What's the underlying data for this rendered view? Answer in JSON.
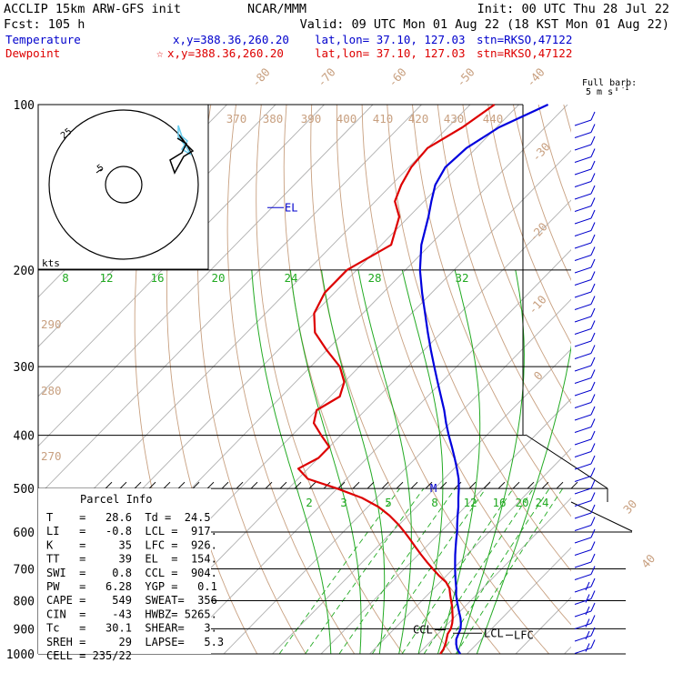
{
  "header": {
    "model": "ACCLIP 15km ARW-GFS init",
    "center": "NCAR/MMM",
    "init": "Init: 00 UTC Thu 28 Jul 22",
    "fcst": "Fcst:  105 h",
    "valid": "Valid: 09 UTC Mon 01 Aug 22 (18 KST Mon 01 Aug 22)",
    "temp_label": "Temperature",
    "temp_xy": "x,y=388.36,260.20",
    "temp_latlon": "lat,lon= 37.10, 127.03",
    "temp_stn": "stn=RKSO,47122",
    "dew_label": "Dewpoint",
    "dew_xy": "x,y=388.36,260.20",
    "dew_latlon": "lat,lon= 37.10, 127.03",
    "dew_stn": "stn=RKSO,47122",
    "full_barb": "Full barb:",
    "barb_unit": "5 m s",
    "barb_unit_sup": "-1"
  },
  "colors": {
    "temperature": "#0000dd",
    "dewpoint": "#dd0000",
    "dry_adiabat": "#c8a080",
    "mixing_ratio": "#22aa22",
    "isobar": "#000000"
  },
  "chart_data": {
    "type": "line",
    "yscale": "log-pressure",
    "ylabel": "",
    "xlabel": "",
    "pressure_levels": [
      "100",
      "200",
      "300",
      "400",
      "500",
      "600",
      "700",
      "800",
      "900",
      "1000"
    ],
    "isotherm_labels": [
      "-80",
      "-70",
      "-60",
      "-50",
      "-40",
      "-30",
      "-20",
      "-10",
      "0",
      "30",
      "40"
    ],
    "theta_top_labels": [
      "370",
      "380",
      "390",
      "400",
      "410",
      "420",
      "430",
      "440"
    ],
    "theta_left_labels": [
      "290",
      "280",
      "270"
    ],
    "mixing_ratio_top": [
      "8",
      "12",
      "16",
      "20",
      "24",
      "28",
      "32"
    ],
    "mixing_ratio_bottom": [
      "2",
      "3",
      "5",
      "8",
      "12",
      "16",
      "20",
      "24"
    ],
    "series": [
      {
        "name": "Temperature",
        "pressure": [
          1000,
          980,
          960,
          940,
          920,
          900,
          880,
          860,
          840,
          820,
          800,
          780,
          760,
          740,
          720,
          700,
          680,
          660,
          640,
          620,
          600,
          580,
          560,
          540,
          520,
          500,
          480,
          460,
          440,
          420,
          400,
          380,
          360,
          340,
          320,
          300,
          280,
          260,
          240,
          220,
          200,
          180,
          160,
          150,
          140,
          130,
          120,
          110,
          100
        ],
        "values": [
          28.6,
          27.0,
          25.8,
          24.8,
          24.2,
          23.6,
          22.6,
          21.4,
          20.0,
          18.6,
          17.2,
          15.8,
          14.6,
          13.2,
          11.8,
          10.4,
          9.0,
          7.6,
          6.2,
          4.8,
          3.4,
          1.8,
          0.2,
          -1.4,
          -3.2,
          -5.0,
          -7.0,
          -9.4,
          -12.0,
          -14.8,
          -17.8,
          -20.8,
          -23.8,
          -27.2,
          -30.8,
          -34.6,
          -38.6,
          -42.8,
          -47.2,
          -52.0,
          -57.0,
          -61.8,
          -66.0,
          -68.5,
          -71.0,
          -72.5,
          -72.0,
          -69.5,
          -64.0
        ]
      },
      {
        "name": "Dewpoint",
        "pressure": [
          1000,
          980,
          960,
          940,
          920,
          900,
          880,
          860,
          840,
          820,
          800,
          780,
          760,
          740,
          720,
          700,
          680,
          660,
          640,
          620,
          600,
          580,
          560,
          540,
          520,
          500,
          480,
          460,
          440,
          420,
          400,
          380,
          360,
          340,
          320,
          300,
          280,
          260,
          240,
          220,
          200,
          180,
          160,
          150,
          140,
          130,
          120,
          110,
          100
        ],
        "values": [
          24.5,
          24.2,
          23.6,
          22.8,
          22.0,
          21.6,
          20.8,
          19.8,
          18.6,
          17.4,
          16.0,
          14.6,
          13.2,
          11.2,
          8.4,
          5.8,
          3.2,
          0.6,
          -2.0,
          -4.6,
          -7.4,
          -10.4,
          -13.8,
          -17.8,
          -23.0,
          -30.0,
          -38.0,
          -42.0,
          -40.0,
          -40.0,
          -44.0,
          -48.0,
          -50.0,
          -48.0,
          -50.0,
          -54.0,
          -60.0,
          -66.0,
          -70.0,
          -72.0,
          -72.0,
          -68.0,
          -72.0,
          -76.0,
          -78.0,
          -79.5,
          -80.0,
          -77.0,
          -75.0
        ]
      }
    ],
    "annotations": {
      "el": "EL",
      "m": "M",
      "ccl": "CCL",
      "lcl": "LCL",
      "lfc": "LFC"
    },
    "hodograph": {
      "rings": [
        "25",
        "5"
      ],
      "unit": "kts"
    }
  },
  "parcel": {
    "title": "Parcel Info",
    "rows": [
      "T    =   28.6  Td =  24.5",
      "LI   =   -0.8  LCL =  917.",
      "K    =     35  LFC =  926.",
      "TT   =     39  EL  =  154.",
      "SWI  =    0.8  CCL =  904.",
      "PW   =   6.28  YGP =   0.1",
      "CAPE =    549  SWEAT=  356",
      "CIN  =    -43  HWBZ= 5265.",
      "Tc   =   30.1  SHEAR=   3.",
      "SREH =     29  LAPSE=   5.3",
      "CELL = 235/22"
    ]
  }
}
